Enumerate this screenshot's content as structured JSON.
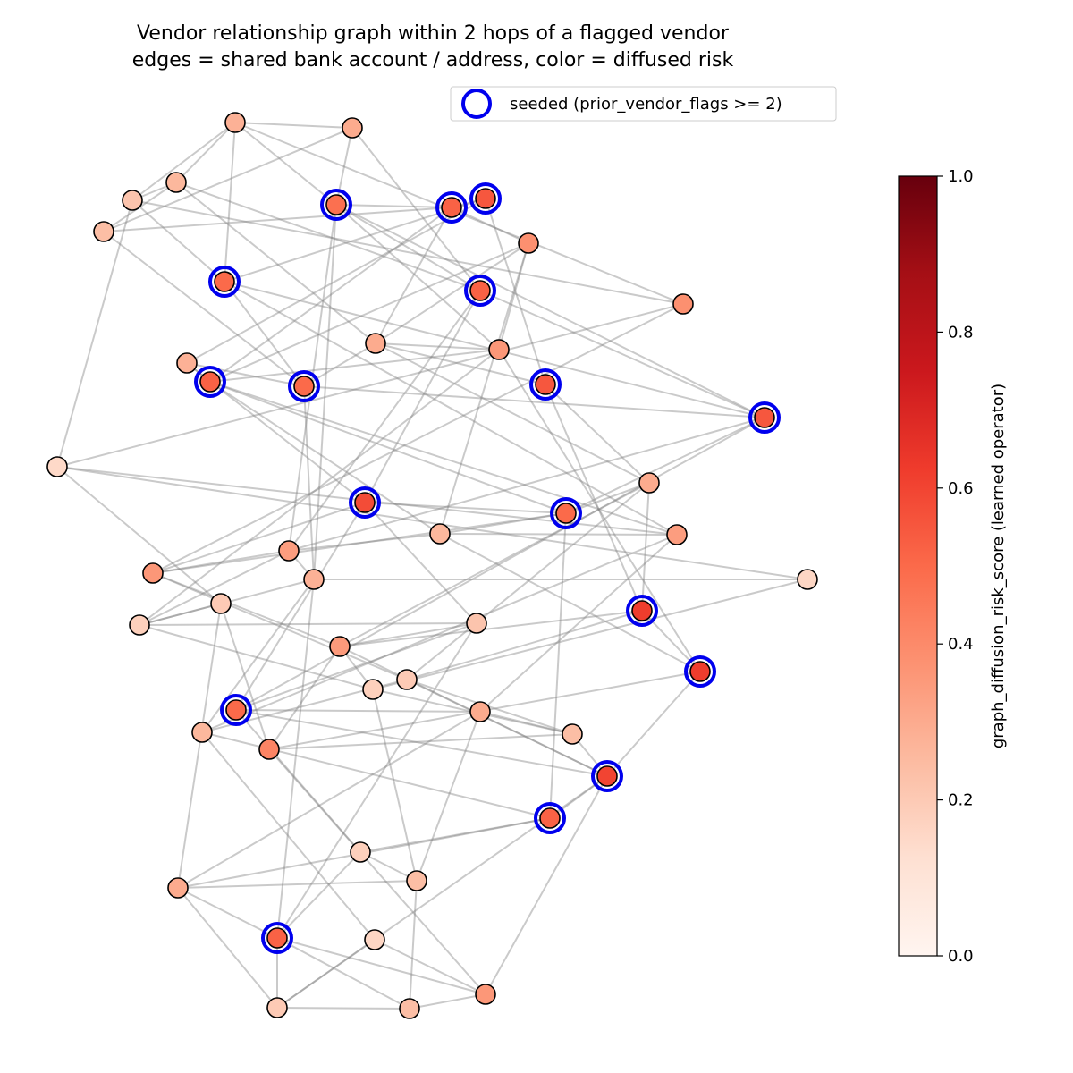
{
  "title": {
    "line1": "Vendor relationship graph within 2 hops of a flagged vendor",
    "line2": "edges = shared bank account / address, color = diffused risk"
  },
  "legend": {
    "label": "seeded (prior_vendor_flags >= 2)",
    "ring_color": "#0000ee",
    "position": "top-right"
  },
  "colorbar": {
    "label": "graph_diffusion_risk_score (learned operator)",
    "ticks": [
      "0.0",
      "0.2",
      "0.4",
      "0.6",
      "0.8",
      "1.0"
    ],
    "tick_values": [
      0.0,
      0.2,
      0.4,
      0.6,
      0.8,
      1.0
    ],
    "range": [
      0,
      1
    ],
    "colormap": "Reds",
    "stops": [
      "#fff5f0",
      "#fee0d2",
      "#fcbba1",
      "#fc9272",
      "#fb6a4a",
      "#ef3b2c",
      "#cb181d",
      "#a50f15",
      "#67000d"
    ]
  },
  "colors": {
    "edge": "#808080",
    "node_outline": "#000000",
    "seed_ring": "#0000ee"
  },
  "graph": {
    "nodes": [
      {
        "id": 0,
        "risk": 0.28,
        "seeded": false
      },
      {
        "id": 1,
        "risk": 0.3,
        "seeded": false
      },
      {
        "id": 2,
        "risk": 0.22,
        "seeded": false
      },
      {
        "id": 3,
        "risk": 0.26,
        "seeded": false
      },
      {
        "id": 4,
        "risk": 0.24,
        "seeded": false
      },
      {
        "id": 5,
        "risk": 0.48,
        "seeded": true
      },
      {
        "id": 6,
        "risk": 0.52,
        "seeded": true
      },
      {
        "id": 7,
        "risk": 0.55,
        "seeded": true
      },
      {
        "id": 8,
        "risk": 0.38,
        "seeded": false
      },
      {
        "id": 9,
        "risk": 0.5,
        "seeded": true
      },
      {
        "id": 10,
        "risk": 0.52,
        "seeded": true
      },
      {
        "id": 11,
        "risk": 0.38,
        "seeded": false
      },
      {
        "id": 12,
        "risk": 0.3,
        "seeded": false
      },
      {
        "id": 13,
        "risk": 0.36,
        "seeded": false
      },
      {
        "id": 14,
        "risk": 0.28,
        "seeded": false
      },
      {
        "id": 15,
        "risk": 0.52,
        "seeded": true
      },
      {
        "id": 16,
        "risk": 0.5,
        "seeded": true
      },
      {
        "id": 17,
        "risk": 0.55,
        "seeded": true
      },
      {
        "id": 18,
        "risk": 0.55,
        "seeded": true
      },
      {
        "id": 19,
        "risk": 0.15,
        "seeded": false
      },
      {
        "id": 20,
        "risk": 0.58,
        "seeded": true
      },
      {
        "id": 21,
        "risk": 0.3,
        "seeded": false
      },
      {
        "id": 22,
        "risk": 0.5,
        "seeded": true
      },
      {
        "id": 23,
        "risk": 0.26,
        "seeded": false
      },
      {
        "id": 24,
        "risk": 0.34,
        "seeded": false
      },
      {
        "id": 25,
        "risk": 0.34,
        "seeded": false
      },
      {
        "id": 26,
        "risk": 0.36,
        "seeded": false
      },
      {
        "id": 27,
        "risk": 0.16,
        "seeded": false
      },
      {
        "id": 28,
        "risk": 0.28,
        "seeded": false
      },
      {
        "id": 29,
        "risk": 0.62,
        "seeded": true
      },
      {
        "id": 30,
        "risk": 0.2,
        "seeded": false
      },
      {
        "id": 31,
        "risk": 0.18,
        "seeded": false
      },
      {
        "id": 32,
        "risk": 0.22,
        "seeded": false
      },
      {
        "id": 33,
        "risk": 0.35,
        "seeded": false
      },
      {
        "id": 34,
        "risk": 0.62,
        "seeded": true
      },
      {
        "id": 35,
        "risk": 0.2,
        "seeded": false
      },
      {
        "id": 36,
        "risk": 0.18,
        "seeded": false
      },
      {
        "id": 37,
        "risk": 0.5,
        "seeded": true
      },
      {
        "id": 38,
        "risk": 0.3,
        "seeded": false
      },
      {
        "id": 39,
        "risk": 0.26,
        "seeded": false
      },
      {
        "id": 40,
        "risk": 0.24,
        "seeded": false
      },
      {
        "id": 41,
        "risk": 0.42,
        "seeded": false
      },
      {
        "id": 42,
        "risk": 0.6,
        "seeded": true
      },
      {
        "id": 43,
        "risk": 0.52,
        "seeded": true
      },
      {
        "id": 44,
        "risk": 0.18,
        "seeded": false
      },
      {
        "id": 45,
        "risk": 0.24,
        "seeded": false
      },
      {
        "id": 46,
        "risk": 0.3,
        "seeded": false
      },
      {
        "id": 47,
        "risk": 0.52,
        "seeded": true
      },
      {
        "id": 48,
        "risk": 0.16,
        "seeded": false
      },
      {
        "id": 49,
        "risk": 0.36,
        "seeded": false
      },
      {
        "id": 50,
        "risk": 0.2,
        "seeded": false
      },
      {
        "id": 51,
        "risk": 0.24,
        "seeded": false
      }
    ],
    "edges": [
      [
        0,
        1
      ],
      [
        0,
        2
      ],
      [
        0,
        3
      ],
      [
        0,
        5
      ],
      [
        0,
        9
      ],
      [
        0,
        11
      ],
      [
        1,
        5
      ],
      [
        1,
        4
      ],
      [
        1,
        10
      ],
      [
        2,
        3
      ],
      [
        2,
        11
      ],
      [
        2,
        19
      ],
      [
        2,
        9
      ],
      [
        3,
        4
      ],
      [
        3,
        10
      ],
      [
        3,
        12
      ],
      [
        4,
        6
      ],
      [
        4,
        16
      ],
      [
        5,
        6
      ],
      [
        5,
        13
      ],
      [
        5,
        18
      ],
      [
        5,
        10
      ],
      [
        5,
        24
      ],
      [
        5,
        28
      ],
      [
        6,
        7
      ],
      [
        6,
        8
      ],
      [
        6,
        15
      ],
      [
        6,
        12
      ],
      [
        7,
        14
      ],
      [
        7,
        9
      ],
      [
        7,
        17
      ],
      [
        8,
        15
      ],
      [
        8,
        12
      ],
      [
        8,
        13
      ],
      [
        8,
        23
      ],
      [
        9,
        16
      ],
      [
        9,
        18
      ],
      [
        9,
        25
      ],
      [
        10,
        18
      ],
      [
        10,
        20
      ],
      [
        10,
        24
      ],
      [
        11,
        19
      ],
      [
        11,
        26
      ],
      [
        12,
        13
      ],
      [
        12,
        17
      ],
      [
        12,
        16
      ],
      [
        12,
        21
      ],
      [
        13,
        15
      ],
      [
        13,
        31
      ],
      [
        13,
        34
      ],
      [
        14,
        15
      ],
      [
        14,
        20
      ],
      [
        14,
        16
      ],
      [
        15,
        22
      ],
      [
        15,
        25
      ],
      [
        15,
        23
      ],
      [
        16,
        18
      ],
      [
        16,
        28
      ],
      [
        17,
        29
      ],
      [
        17,
        21
      ],
      [
        18,
        22
      ],
      [
        18,
        24
      ],
      [
        18,
        37
      ],
      [
        19,
        25
      ],
      [
        19,
        27
      ],
      [
        19,
        30
      ],
      [
        20,
        22
      ],
      [
        20,
        26
      ],
      [
        20,
        32
      ],
      [
        20,
        37
      ],
      [
        21,
        22
      ],
      [
        21,
        29
      ],
      [
        21,
        33
      ],
      [
        21,
        35
      ],
      [
        22,
        23
      ],
      [
        22,
        26
      ],
      [
        22,
        43
      ],
      [
        23,
        24
      ],
      [
        23,
        25
      ],
      [
        23,
        34
      ],
      [
        24,
        26
      ],
      [
        24,
        31
      ],
      [
        24,
        28
      ],
      [
        25,
        38
      ],
      [
        25,
        39
      ],
      [
        26,
        33
      ],
      [
        26,
        35
      ],
      [
        27,
        28
      ],
      [
        27,
        36
      ],
      [
        28,
        31
      ],
      [
        28,
        39
      ],
      [
        28,
        47
      ],
      [
        29,
        34
      ],
      [
        29,
        33
      ],
      [
        29,
        35
      ],
      [
        30,
        31
      ],
      [
        30,
        41
      ],
      [
        30,
        46
      ],
      [
        31,
        32
      ],
      [
        31,
        36
      ],
      [
        32,
        33
      ],
      [
        32,
        37
      ],
      [
        32,
        47
      ],
      [
        33,
        36
      ],
      [
        33,
        41
      ],
      [
        33,
        42
      ],
      [
        34,
        42
      ],
      [
        34,
        41
      ],
      [
        35,
        40
      ],
      [
        35,
        39
      ],
      [
        35,
        42
      ],
      [
        36,
        40
      ],
      [
        36,
        45
      ],
      [
        37,
        38
      ],
      [
        37,
        42
      ],
      [
        37,
        44
      ],
      [
        38,
        40
      ],
      [
        38,
        46
      ],
      [
        38,
        45
      ],
      [
        39,
        43
      ],
      [
        39,
        48
      ],
      [
        40,
        41
      ],
      [
        40,
        42
      ],
      [
        41,
        49
      ],
      [
        42,
        43
      ],
      [
        42,
        49
      ],
      [
        42,
        50
      ],
      [
        43,
        44
      ],
      [
        43,
        46
      ],
      [
        44,
        47
      ],
      [
        44,
        45
      ],
      [
        45,
        46
      ],
      [
        45,
        51
      ],
      [
        46,
        47
      ],
      [
        46,
        50
      ],
      [
        47,
        49
      ],
      [
        47,
        50
      ],
      [
        47,
        51
      ],
      [
        48,
        49
      ],
      [
        48,
        50
      ],
      [
        49,
        51
      ],
      [
        50,
        51
      ]
    ]
  }
}
